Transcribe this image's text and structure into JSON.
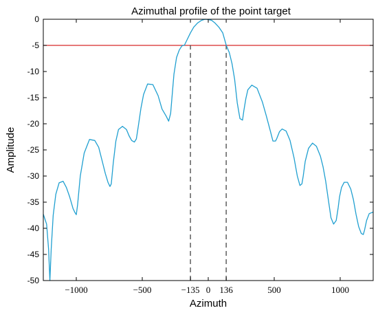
{
  "chart_data": {
    "type": "line",
    "title": "Azimuthal profile of the point target",
    "xlabel": "Azimuth",
    "ylabel": "Amplitude",
    "xlim": [
      -1250,
      1250
    ],
    "ylim": [
      -50,
      0
    ],
    "xticks": [
      -1000,
      -500,
      -135,
      0,
      136,
      500,
      1000
    ],
    "xtick_labels": [
      "−1000",
      "−500",
      "−135",
      "0",
      "136",
      "500",
      "1000"
    ],
    "yticks": [
      0,
      -5,
      -10,
      -15,
      -20,
      -25,
      -30,
      -35,
      -40,
      -45,
      -50
    ],
    "ytick_labels": [
      "0",
      "-5",
      "-10",
      "-15",
      "-20",
      "-25",
      "-30",
      "-35",
      "-40",
      "-45",
      "-50"
    ],
    "grid": false,
    "series": [
      {
        "color": "#1f9fd0",
        "x": [
          -1250,
          -1225,
          -1210,
          -1200,
          -1190,
          -1175,
          -1155,
          -1130,
          -1100,
          -1075,
          -1050,
          -1025,
          -1010,
          -1000,
          -990,
          -970,
          -940,
          -900,
          -860,
          -830,
          -800,
          -780,
          -760,
          -745,
          -735,
          -720,
          -700,
          -680,
          -650,
          -620,
          -600,
          -580,
          -560,
          -545,
          -530,
          -510,
          -490,
          -460,
          -420,
          -380,
          -350,
          -320,
          -300,
          -285,
          -275,
          -260,
          -240,
          -220,
          -200,
          -180,
          -160,
          -135,
          -110,
          -80,
          -50,
          -25,
          0,
          25,
          50,
          80,
          110,
          136,
          160,
          180,
          200,
          220,
          240,
          260,
          270,
          285,
          300,
          330,
          370,
          410,
          440,
          470,
          490,
          510,
          520,
          540,
          560,
          590,
          620,
          650,
          675,
          695,
          710,
          720,
          735,
          760,
          790,
          820,
          850,
          870,
          890,
          910,
          930,
          950,
          970,
          985,
          995,
          1010,
          1030,
          1055,
          1080,
          1100,
          1120,
          1140,
          1160,
          1175,
          1185,
          1200,
          1220,
          1250
        ],
        "y": [
          -37.3,
          -39.2,
          -44,
          -50,
          -44,
          -37.5,
          -33.5,
          -31.3,
          -31,
          -32.2,
          -34,
          -36.2,
          -37,
          -37.4,
          -35.5,
          -30,
          -25.6,
          -23,
          -23.2,
          -24.5,
          -27.5,
          -29.5,
          -31.2,
          -32,
          -31.5,
          -27.5,
          -23.3,
          -21.1,
          -20.5,
          -21.1,
          -22.3,
          -23.2,
          -23.5,
          -22.9,
          -20.5,
          -17,
          -14.4,
          -12.4,
          -12.5,
          -14.6,
          -17.2,
          -18.5,
          -19.5,
          -18,
          -15,
          -10.5,
          -7.3,
          -5.9,
          -5.1,
          -4.95,
          -3.9,
          -2.6,
          -1.5,
          -0.7,
          -0.2,
          0,
          -0.05,
          -0.2,
          -0.7,
          -1.5,
          -2.6,
          -4.95,
          -6.4,
          -8.5,
          -11.5,
          -16,
          -19,
          -19.3,
          -17.5,
          -15.2,
          -13.5,
          -12.6,
          -13.2,
          -15.8,
          -18.5,
          -21.3,
          -23.3,
          -23.3,
          -22.8,
          -21.5,
          -21,
          -21.4,
          -23.2,
          -26.5,
          -30,
          -31.8,
          -31.5,
          -30,
          -27.2,
          -24.7,
          -23.7,
          -24.3,
          -26.2,
          -28.2,
          -31,
          -34.5,
          -38,
          -39.2,
          -38.5,
          -36,
          -34,
          -32.2,
          -31.2,
          -31.2,
          -32.5,
          -34.5,
          -37.3,
          -39.7,
          -41,
          -41.2,
          -40.3,
          -38.5,
          -37.2,
          -36.9
        ]
      }
    ],
    "reference_line": {
      "y": -5,
      "color": "#d62728"
    },
    "vertical_markers": [
      {
        "x": -135,
        "y_top": -4.95
      },
      {
        "x": 136,
        "y_top": -4.95
      }
    ]
  }
}
